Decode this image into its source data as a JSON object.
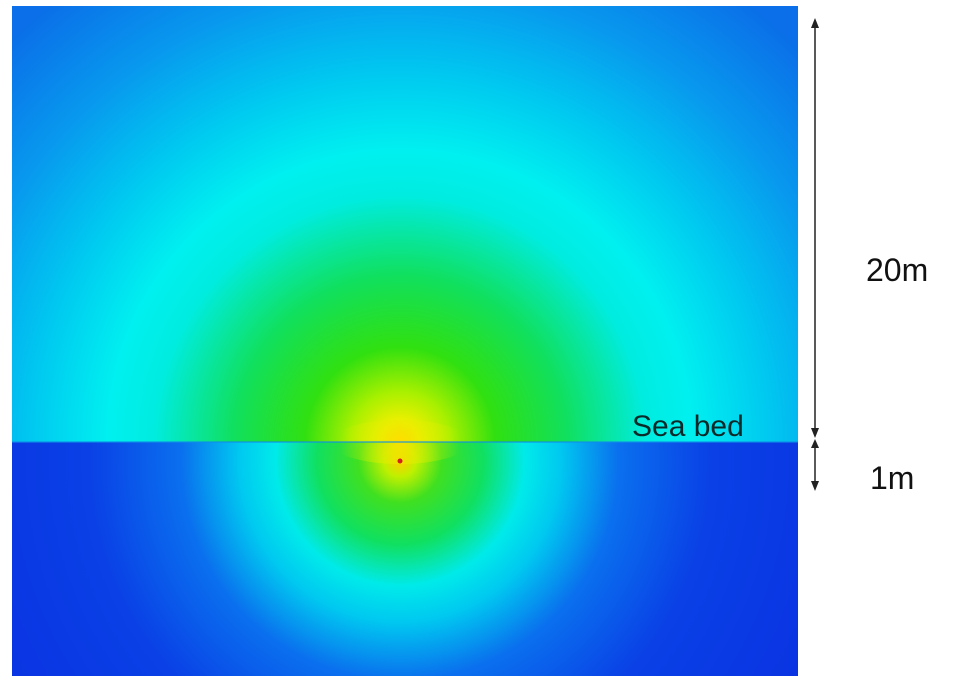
{
  "labels": {
    "sea_bed": "Sea bed",
    "upper_depth": "20m",
    "lower_depth": "1m"
  },
  "colors": {
    "deep_blue": "#0a2ee0",
    "mid_blue": "#0a7ff0",
    "cyan": "#00f0f0",
    "green": "#10e010",
    "yellow": "#f0f000",
    "source_dot": "#d02020",
    "dimension_line": "#222222"
  }
}
